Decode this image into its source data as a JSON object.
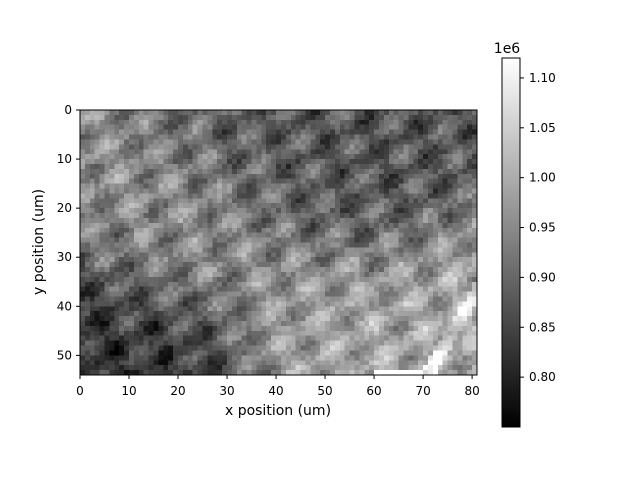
{
  "chart_data": {
    "type": "heatmap",
    "colormap": "gray",
    "xlabel": "x position (um)",
    "ylabel": "y position (um)",
    "xlim": [
      0,
      81
    ],
    "ylim": [
      54,
      0
    ],
    "x_ticks": [
      0,
      10,
      20,
      30,
      40,
      50,
      60,
      70,
      80
    ],
    "y_ticks": [
      0,
      10,
      20,
      30,
      40,
      50
    ],
    "x_tick_labels": [
      "0",
      "10",
      "20",
      "30",
      "40",
      "50",
      "60",
      "70",
      "80"
    ],
    "y_tick_labels": [
      "0",
      "10",
      "20",
      "30",
      "40",
      "50"
    ],
    "colorbar": {
      "range": [
        0.75,
        1.12
      ],
      "ticks": [
        0.8,
        0.85,
        0.9,
        0.95,
        1.0,
        1.05,
        1.1
      ],
      "tick_labels": [
        "0.80",
        "0.85",
        "0.90",
        "0.95",
        "1.00",
        "1.05",
        "1.10"
      ],
      "multiplier_label": "1e6"
    },
    "grid": false,
    "approx_features": [
      {
        "x": 22,
        "y": 25,
        "value": 0.99
      },
      {
        "x": 12,
        "y": 50,
        "value": 0.78
      },
      {
        "x": 53,
        "y": 45,
        "value": 1.03
      },
      {
        "x": 77,
        "y": 43,
        "value": 1.05
      },
      {
        "x": 60,
        "y": 12,
        "value": 0.86
      },
      {
        "x": 40,
        "y": 5,
        "value": 0.87
      }
    ]
  }
}
